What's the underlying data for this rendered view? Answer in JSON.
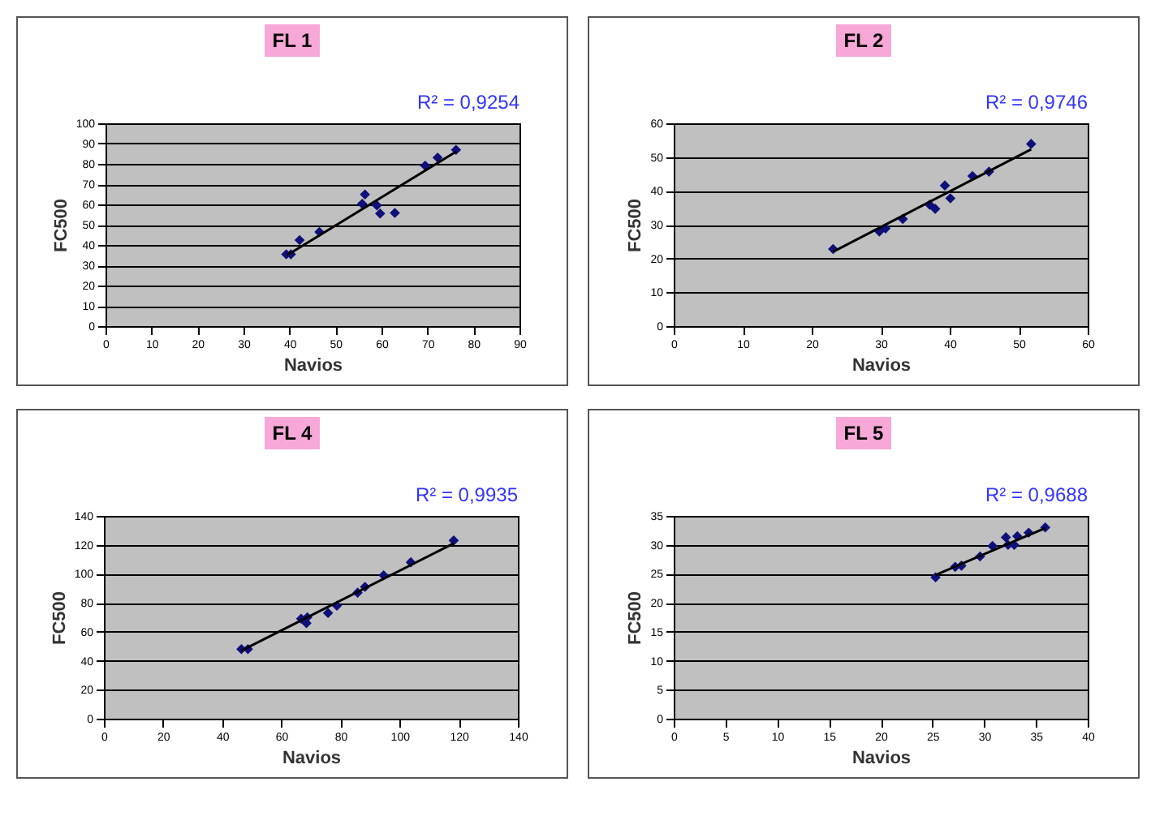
{
  "chart_data": [
    {
      "type": "scatter",
      "title": "FL 1",
      "xlabel": "Navios",
      "ylabel": "FC500",
      "annotations": [
        "R² = 0,9254"
      ],
      "marker": "diamond",
      "grid": "y",
      "xlim": [
        0,
        90
      ],
      "xticks": [
        0,
        10,
        20,
        30,
        40,
        50,
        60,
        70,
        80,
        90
      ],
      "ylim": [
        0,
        100
      ],
      "yticks": [
        0,
        10,
        20,
        30,
        40,
        50,
        60,
        70,
        80,
        90,
        100
      ],
      "series": [
        {
          "color": "#10107a",
          "x": [
            39.3,
            40.3,
            42.2,
            46.5,
            55.8,
            56.4,
            59,
            59.7,
            62.9,
            69.5,
            72.2,
            76.2
          ],
          "values": [
            35.4,
            35.4,
            42.4,
            46.4,
            60.3,
            64.9,
            59.5,
            55.5,
            55.8,
            79.1,
            83.1,
            86.9
          ]
        },
        {
          "type": "line",
          "marker": "none",
          "color": "#000000",
          "x": [
            39.5,
            76.2
          ],
          "values": [
            35,
            86
          ]
        }
      ]
    },
    {
      "type": "scatter",
      "title": "FL 2",
      "xlabel": "Navios",
      "ylabel": "FC500",
      "annotations": [
        "R² = 0,9746"
      ],
      "marker": "diamond",
      "grid": "y",
      "xlim": [
        0,
        60
      ],
      "xticks": [
        0,
        10,
        20,
        30,
        40,
        50,
        60
      ],
      "ylim": [
        0,
        60
      ],
      "yticks": [
        0,
        10,
        20,
        30,
        40,
        50,
        60
      ],
      "series": [
        {
          "color": "#10107a",
          "x": [
            23.1,
            29.8,
            30.7,
            33.2,
            37.1,
            37.9,
            39.3,
            40.1,
            43.3,
            45.7,
            51.8
          ],
          "values": [
            22.8,
            28,
            28.9,
            31.7,
            35.9,
            34.7,
            41.6,
            37.8,
            44.4,
            45.7,
            53.9
          ]
        },
        {
          "type": "line",
          "marker": "none",
          "color": "#000000",
          "x": [
            23.1,
            51.8
          ],
          "values": [
            22,
            52.3
          ]
        }
      ]
    },
    {
      "type": "scatter",
      "title": "FL 4",
      "xlabel": "Navios",
      "ylabel": "FC500",
      "annotations": [
        "R² = 0,9935"
      ],
      "marker": "diamond",
      "grid": "y",
      "xlim": [
        0,
        140
      ],
      "xticks": [
        0,
        20,
        40,
        60,
        80,
        100,
        120,
        140
      ],
      "ylim": [
        0,
        140
      ],
      "yticks": [
        0,
        20,
        40,
        60,
        80,
        100,
        120,
        140
      ],
      "series": [
        {
          "color": "#10107a",
          "x": [
            46.5,
            48.7,
            66.7,
            68.8,
            68.5,
            75.8,
            78.8,
            85.8,
            88.3,
            94.6,
            103.8,
            118.3
          ],
          "values": [
            48,
            48,
            69,
            70,
            66,
            73,
            78,
            87,
            91,
            99,
            108,
            123
          ]
        },
        {
          "type": "line",
          "marker": "none",
          "color": "#000000",
          "x": [
            46.5,
            118.3
          ],
          "values": [
            47,
            121
          ]
        }
      ]
    },
    {
      "type": "scatter",
      "title": "FL 5",
      "xlabel": "Navios",
      "ylabel": "FC500",
      "annotations": [
        "R² = 0,9688"
      ],
      "marker": "diamond",
      "grid": "y",
      "xlim": [
        0,
        40
      ],
      "xticks": [
        0,
        5,
        10,
        15,
        20,
        25,
        30,
        35,
        40
      ],
      "ylim": [
        0,
        35
      ],
      "yticks": [
        0,
        5,
        10,
        15,
        20,
        25,
        30,
        35
      ],
      "series": [
        {
          "color": "#10107a",
          "x": [
            25.3,
            27.2,
            27.8,
            29.6,
            30.8,
            32.1,
            32.3,
            32.9,
            33.2,
            34.3,
            35.9
          ],
          "values": [
            24.4,
            26.2,
            26.4,
            28,
            29.8,
            31.3,
            30,
            30,
            31.5,
            32.1,
            33
          ]
        },
        {
          "type": "line",
          "marker": "none",
          "color": "#000000",
          "x": [
            25.3,
            35.9
          ],
          "values": [
            24.8,
            32.9
          ]
        }
      ]
    }
  ]
}
